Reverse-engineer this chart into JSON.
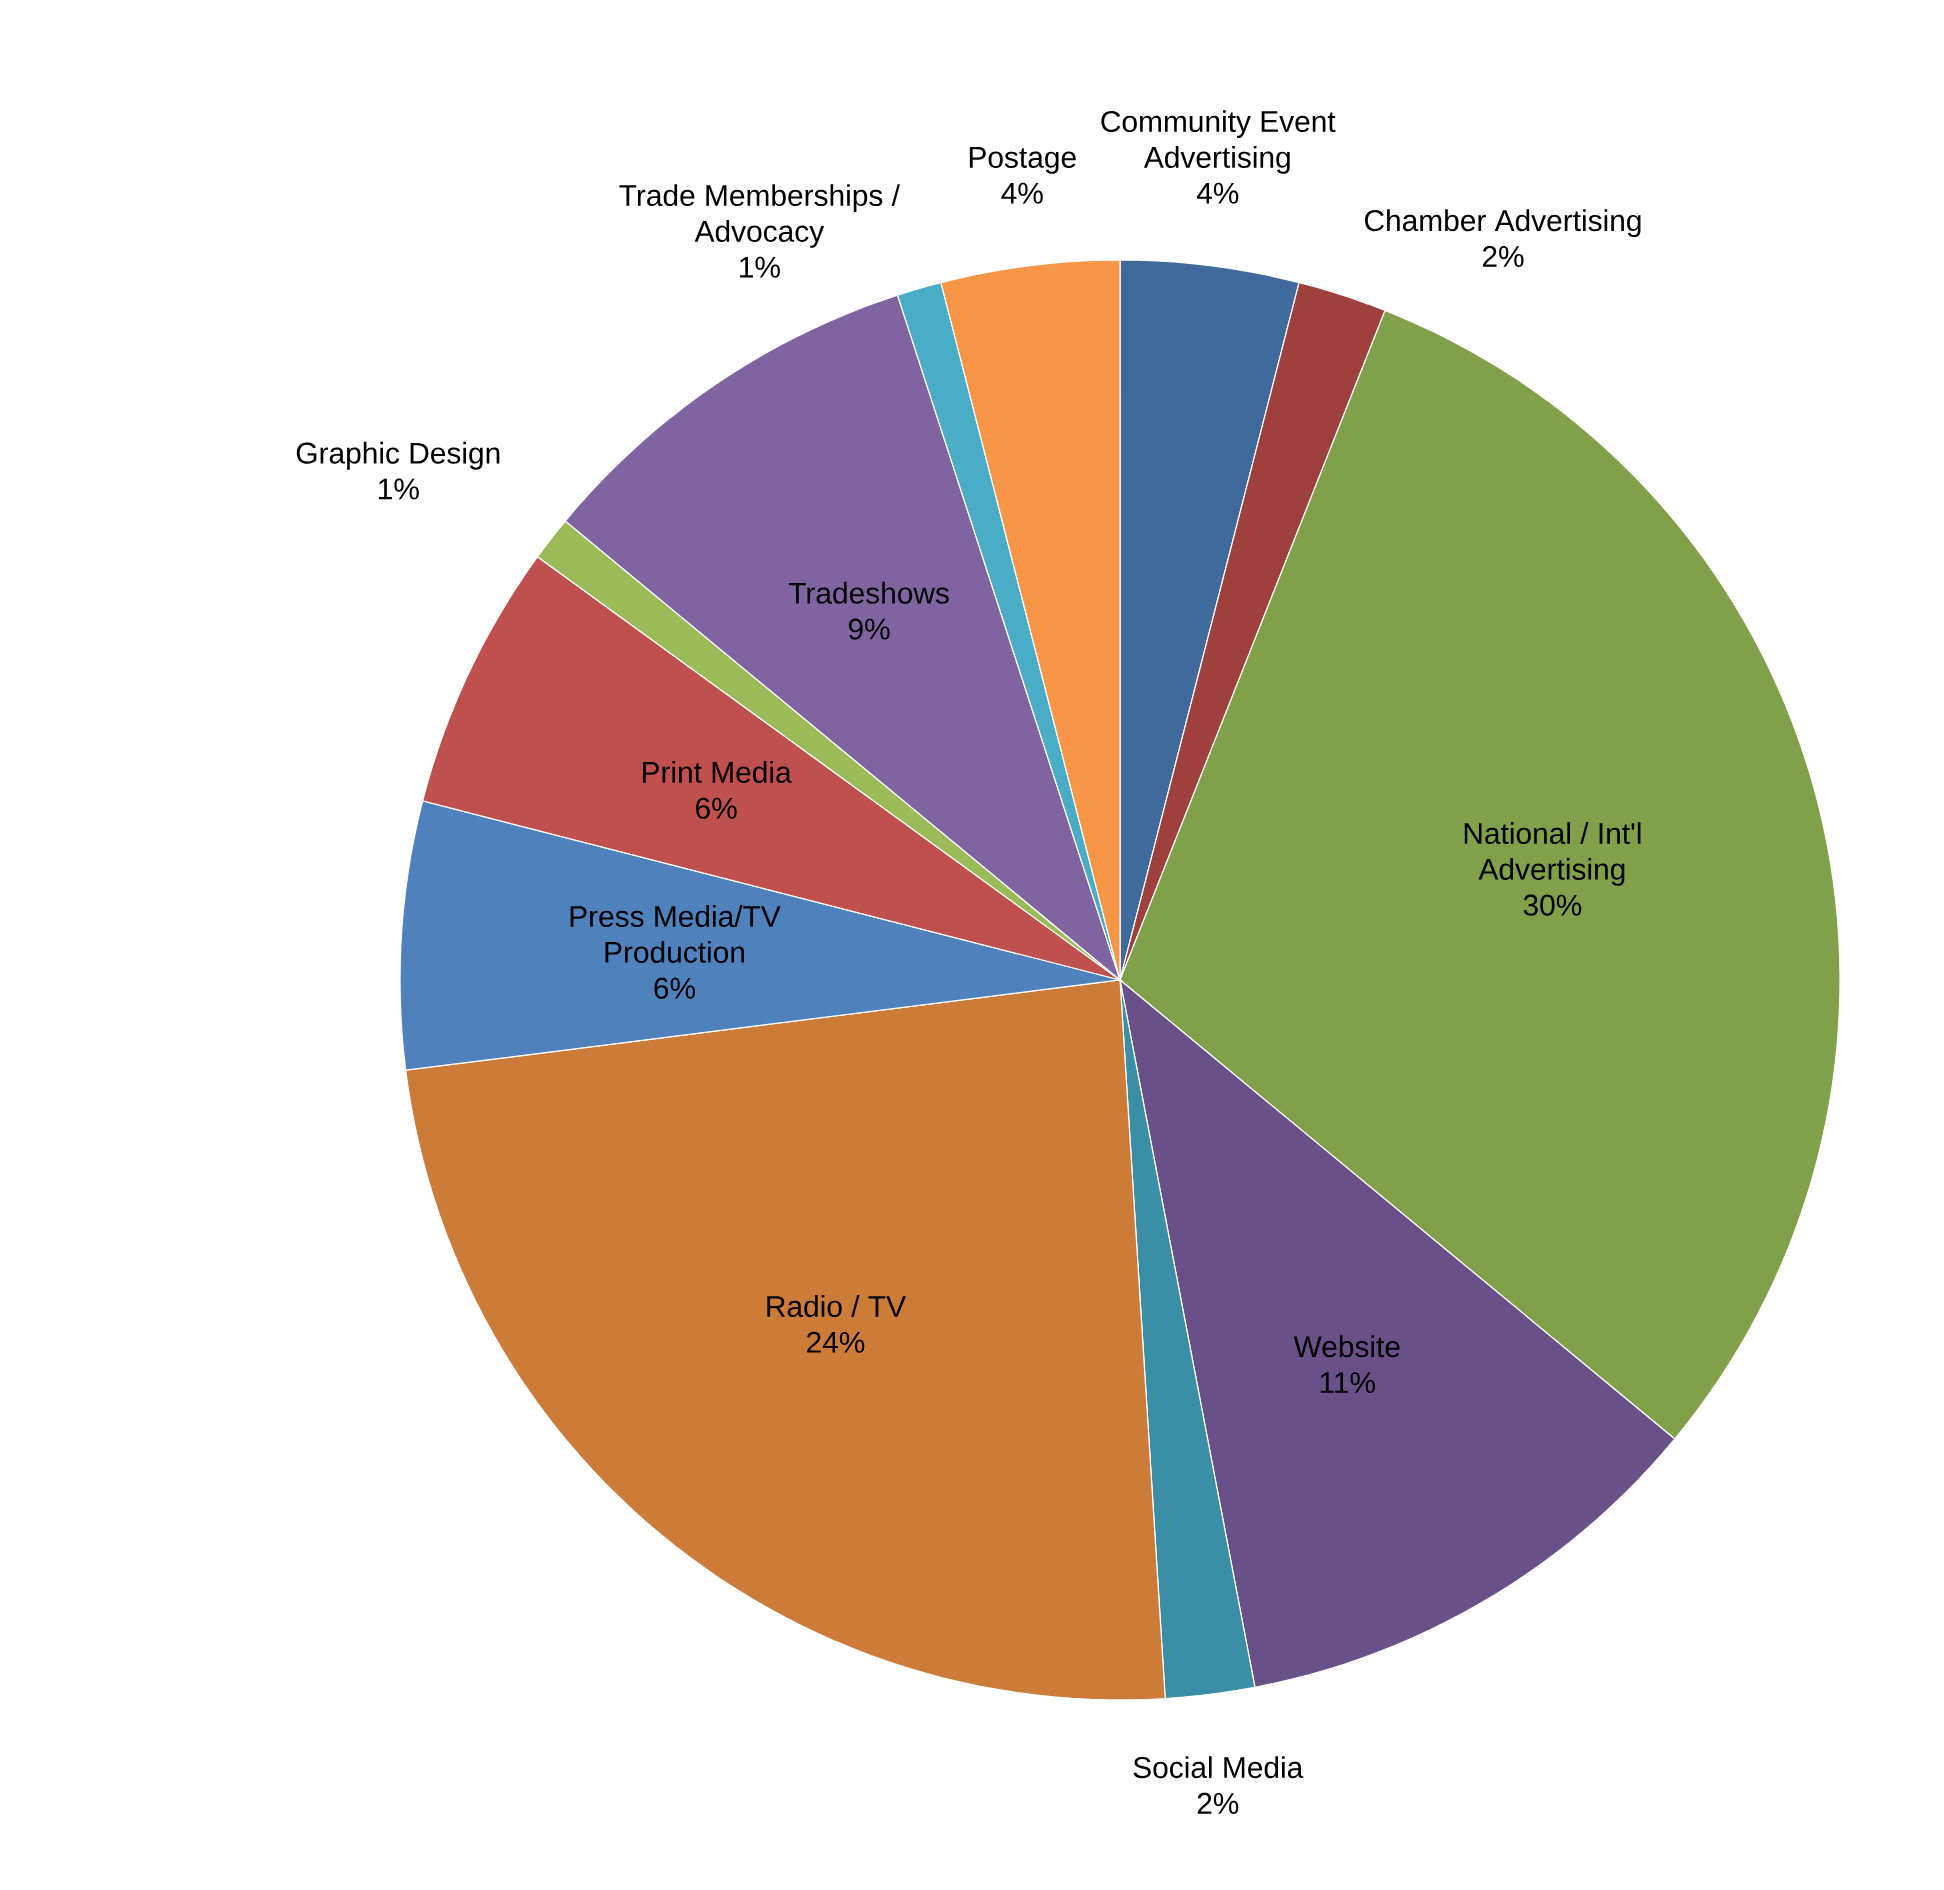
{
  "chart_data": {
    "type": "pie",
    "categories": [
      "Community Event Advertising",
      "Chamber Advertising",
      "National / Int'l Advertising",
      "Website",
      "Social Media",
      "Radio / TV",
      "Press Media/TV Production",
      "Print Media",
      "Graphic Design",
      "Tradeshows",
      "Trade Memberships / Advocacy",
      "Postage"
    ],
    "values": [
      4,
      2,
      30,
      11,
      2,
      24,
      6,
      6,
      1,
      9,
      1,
      4
    ],
    "value_labels": [
      "4%",
      "2%",
      "30%",
      "11%",
      "2%",
      "24%",
      "6%",
      "6%",
      "1%",
      "9%",
      "1%",
      "4%"
    ],
    "colors": [
      "#406a9c",
      "#9e413e",
      "#80a04a",
      "#6a5088",
      "#3a8ea5",
      "#cc7b38",
      "#4f81bd",
      "#c0504d",
      "#9bbb59",
      "#8064a2",
      "#4bacc6",
      "#f79646"
    ]
  }
}
